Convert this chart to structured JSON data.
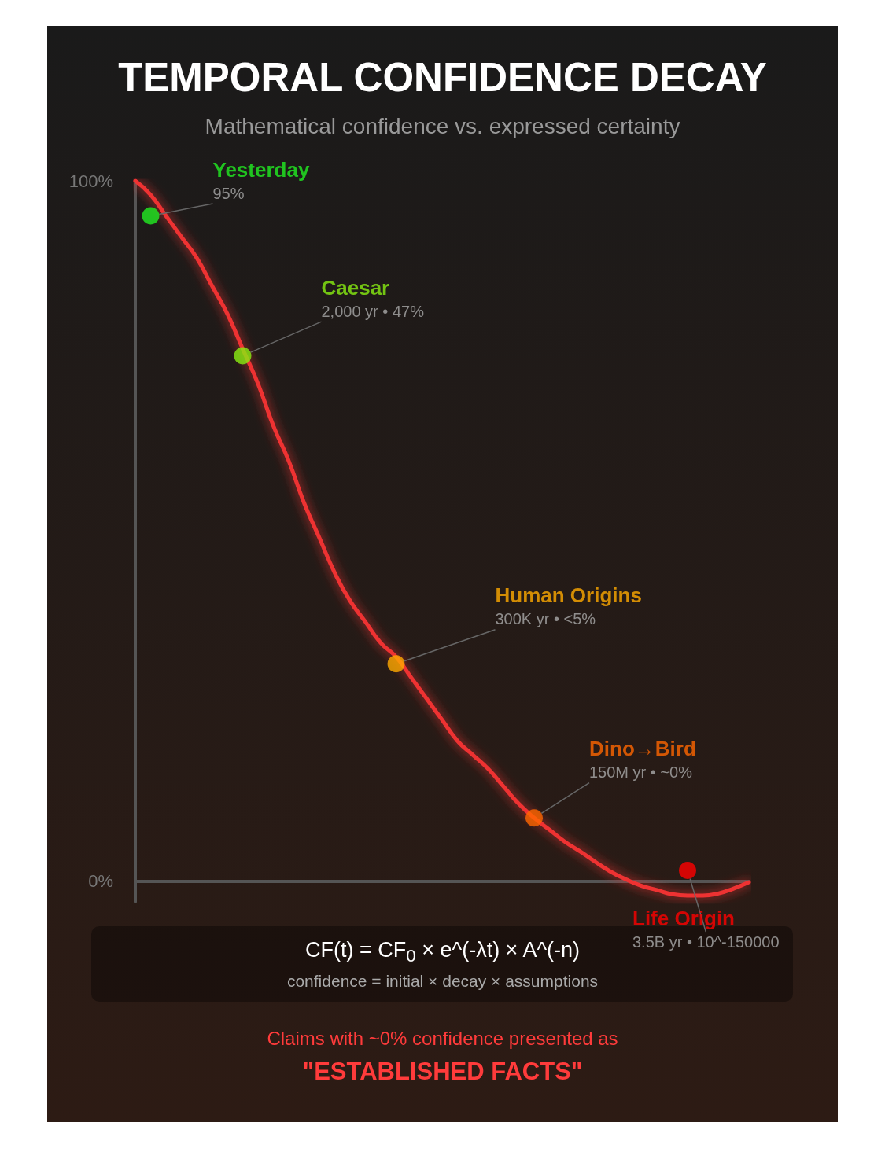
{
  "chart_data": {
    "type": "line",
    "title": "TEMPORAL CONFIDENCE DECAY",
    "subtitle": "Mathematical confidence vs. expressed certainty",
    "categories": [
      null,
      null,
      null,
      null,
      null,
      null,
      null,
      null,
      null,
      null,
      null,
      null,
      null,
      null,
      null,
      null,
      null,
      null,
      null,
      null,
      null,
      null,
      null,
      null,
      null,
      null,
      null,
      null,
      null,
      null,
      null,
      null,
      null,
      null,
      null,
      null,
      null,
      null,
      null,
      null,
      null
    ],
    "ylim": [
      -3,
      100
    ],
    "yticks": [
      {
        "value": 0,
        "label": "0%"
      },
      {
        "value": 100,
        "label": "100%"
      }
    ],
    "legend": false,
    "tick_labels": "y",
    "series": [
      {
        "color": "#ee3333",
        "marker": "none",
        "values": [
          100,
          98,
          95,
          92,
          89,
          85,
          81,
          76,
          71,
          65,
          60,
          54,
          49,
          44,
          40,
          37,
          34,
          32,
          29,
          26,
          23,
          20,
          18,
          16,
          13.5,
          11,
          9,
          7.3,
          5.6,
          4.2,
          2.7,
          1.3,
          0.2,
          -0.7,
          -1.3,
          -1.9,
          -2.1,
          -2.1,
          -1.8,
          -1.1,
          -0.2
        ]
      },
      {
        "type": "scatter",
        "name": "Yesterday",
        "color": "#22ee22",
        "marker": "circle",
        "values": [
          null,
          95,
          null,
          null,
          null,
          null,
          null,
          null,
          null,
          null,
          null,
          null,
          null,
          null,
          null,
          null,
          null,
          null,
          null,
          null,
          null,
          null,
          null,
          null,
          null,
          null,
          null,
          null,
          null,
          null,
          null,
          null,
          null,
          null,
          null,
          null,
          null,
          null,
          null,
          null,
          null
        ],
        "value_labels": [
          null,
          "95%",
          null,
          null,
          null,
          null,
          null,
          null,
          null,
          null,
          null,
          null,
          null,
          null,
          null,
          null,
          null,
          null,
          null,
          null,
          null,
          null,
          null,
          null,
          null,
          null,
          null,
          null,
          null,
          null,
          null,
          null,
          null,
          null,
          null,
          null,
          null,
          null,
          null,
          null,
          null
        ]
      },
      {
        "type": "scatter",
        "name": "Caesar",
        "color": "#88ee11",
        "marker": "circle",
        "values": [
          null,
          null,
          null,
          null,
          null,
          null,
          null,
          75,
          null,
          null,
          null,
          null,
          null,
          null,
          null,
          null,
          null,
          null,
          null,
          null,
          null,
          null,
          null,
          null,
          null,
          null,
          null,
          null,
          null,
          null,
          null,
          null,
          null,
          null,
          null,
          null,
          null,
          null,
          null,
          null,
          null
        ],
        "value_labels": [
          null,
          null,
          null,
          null,
          null,
          null,
          null,
          "2,000 yr • 47%",
          null,
          null,
          null,
          null,
          null,
          null,
          null,
          null,
          null,
          null,
          null,
          null,
          null,
          null,
          null,
          null,
          null,
          null,
          null,
          null,
          null,
          null,
          null,
          null,
          null,
          null,
          null,
          null,
          null,
          null,
          null,
          null,
          null
        ]
      },
      {
        "type": "scatter",
        "name": "Human Origins",
        "color": "#ffaa00",
        "marker": "circle",
        "values": [
          null,
          null,
          null,
          null,
          null,
          null,
          null,
          null,
          null,
          null,
          null,
          null,
          null,
          null,
          null,
          null,
          null,
          31,
          null,
          null,
          null,
          null,
          null,
          null,
          null,
          null,
          null,
          null,
          null,
          null,
          null,
          null,
          null,
          null,
          null,
          null,
          null,
          null,
          null,
          null,
          null
        ],
        "value_labels": [
          null,
          null,
          null,
          null,
          null,
          null,
          null,
          null,
          null,
          null,
          null,
          null,
          null,
          null,
          null,
          null,
          null,
          "300K yr • <5%",
          null,
          null,
          null,
          null,
          null,
          null,
          null,
          null,
          null,
          null,
          null,
          null,
          null,
          null,
          null,
          null,
          null,
          null,
          null,
          null,
          null,
          null,
          null
        ]
      },
      {
        "type": "scatter",
        "name": "Dino→Bird",
        "color": "#ff6600",
        "marker": "circle",
        "values": [
          null,
          null,
          null,
          null,
          null,
          null,
          null,
          null,
          null,
          null,
          null,
          null,
          null,
          null,
          null,
          null,
          null,
          null,
          null,
          null,
          null,
          null,
          null,
          null,
          null,
          null,
          9,
          null,
          null,
          null,
          null,
          null,
          null,
          null,
          null,
          null,
          null,
          null,
          null,
          null,
          null
        ],
        "value_labels": [
          null,
          null,
          null,
          null,
          null,
          null,
          null,
          null,
          null,
          null,
          null,
          null,
          null,
          null,
          null,
          null,
          null,
          null,
          null,
          null,
          null,
          null,
          null,
          null,
          null,
          null,
          "150M yr • ~0%",
          null,
          null,
          null,
          null,
          null,
          null,
          null,
          null,
          null,
          null,
          null,
          null,
          null,
          null
        ]
      },
      {
        "type": "scatter",
        "name": "Life Origin",
        "color": "#ff0000",
        "marker": "circle",
        "values": [
          null,
          null,
          null,
          null,
          null,
          null,
          null,
          null,
          null,
          null,
          null,
          null,
          null,
          null,
          null,
          null,
          null,
          null,
          null,
          null,
          null,
          null,
          null,
          null,
          null,
          null,
          null,
          null,
          null,
          null,
          null,
          null,
          null,
          null,
          null,
          null,
          1.5,
          null,
          null,
          null,
          null
        ],
        "value_labels": [
          null,
          null,
          null,
          null,
          null,
          null,
          null,
          null,
          null,
          null,
          null,
          null,
          null,
          null,
          null,
          null,
          null,
          null,
          null,
          null,
          null,
          null,
          null,
          null,
          null,
          null,
          null,
          null,
          null,
          null,
          null,
          null,
          null,
          null,
          null,
          null,
          "3.5B yr • 10^-150000",
          null,
          null,
          null,
          null
        ]
      }
    ],
    "annotations": [
      "CF(t) = CF$_{0}$ × e^(-λt) × A^(-n)",
      "confidence = initial × decay × assumptions",
      "Claims with ~0% confidence presented as",
      "\"ESTABLISHED FACTS\""
    ]
  }
}
